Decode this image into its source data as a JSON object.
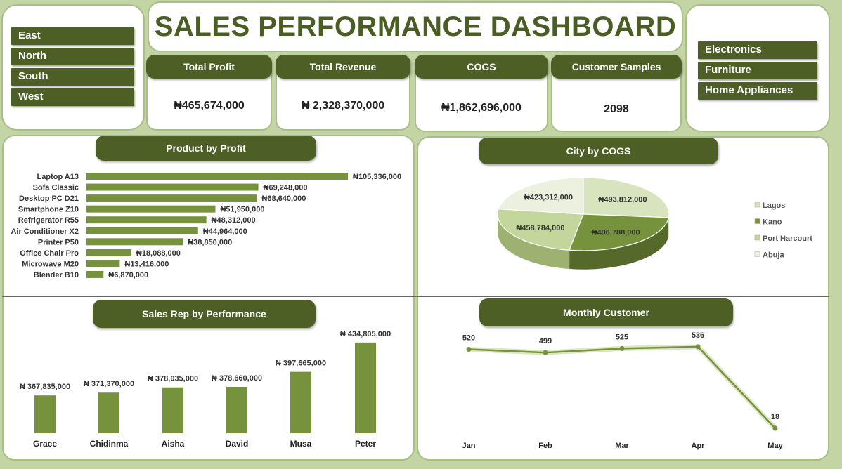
{
  "title": "SALES PERFORMANCE DASHBOARD",
  "regions": [
    "East",
    "North",
    "South",
    "West"
  ],
  "categories": [
    "Electronics",
    "Furniture",
    "Home Appliances"
  ],
  "kpis": [
    {
      "label": "Total Profit",
      "value": "₦465,674,000"
    },
    {
      "label": "Total Revenue",
      "value": "₦ 2,328,370,000"
    },
    {
      "label": "COGS",
      "value": "₦1,862,696,000"
    },
    {
      "label": "Customer Samples",
      "value": "2098"
    }
  ],
  "colors": {
    "dark_green": "#4e5f26",
    "bar_green": "#76923c",
    "background": "#c3d4a5",
    "title_text": "#4a5d23"
  },
  "chart_data": [
    {
      "type": "bar",
      "orientation": "horizontal",
      "title": "Product by Profit",
      "categories": [
        "Laptop A13",
        "Sofa Classic",
        "Desktop PC D21",
        "Smartphone Z10",
        "Refrigerator R55",
        "Air Conditioner X2",
        "Printer P50",
        "Office Chair Pro",
        "Microwave M20",
        "Blender B10"
      ],
      "values": [
        105336000,
        69248000,
        68640000,
        51950000,
        48312000,
        44964000,
        38850000,
        18088000,
        13416000,
        6870000
      ],
      "labels": [
        "₦105,336,000",
        "₦69,248,000",
        "₦68,640,000",
        "₦51,950,000",
        "₦48,312,000",
        "₦44,964,000",
        "₦38,850,000",
        "₦18,088,000",
        "₦13,416,000",
        "₦6,870,000"
      ],
      "xlim": [
        0,
        105336000
      ]
    },
    {
      "type": "pie",
      "title": "City by COGS",
      "categories": [
        "Lagos",
        "Kano",
        "Port Harcourt",
        "Abuja"
      ],
      "values": [
        493812000,
        486788000,
        458784000,
        423312000
      ],
      "labels": [
        "₦493,812,000",
        "₦486,788,000",
        "₦458,784,000",
        "₦423,312,000"
      ],
      "slice_colors": [
        "#d7e4bd",
        "#76923c",
        "#c3d69b",
        "#ebf1de"
      ],
      "legend": "right"
    },
    {
      "type": "bar",
      "orientation": "vertical",
      "title": "Sales Rep by Performance",
      "categories": [
        "Grace",
        "Chidinma",
        "Aisha",
        "David",
        "Musa",
        "Peter"
      ],
      "values": [
        367835000,
        371370000,
        378035000,
        378660000,
        397665000,
        434805000
      ],
      "labels": [
        "₦ 367,835,000",
        "₦ 371,370,000",
        "₦ 378,035,000",
        "₦ 378,660,000",
        "₦ 397,665,000",
        "₦ 434,805,000"
      ],
      "ylim": [
        320000000,
        440000000
      ]
    },
    {
      "type": "line",
      "title": "Monthly Customer",
      "categories": [
        "Jan",
        "Feb",
        "Mar",
        "Apr",
        "May"
      ],
      "values": [
        520,
        499,
        525,
        536,
        18
      ],
      "ylim": [
        0,
        540
      ]
    }
  ]
}
